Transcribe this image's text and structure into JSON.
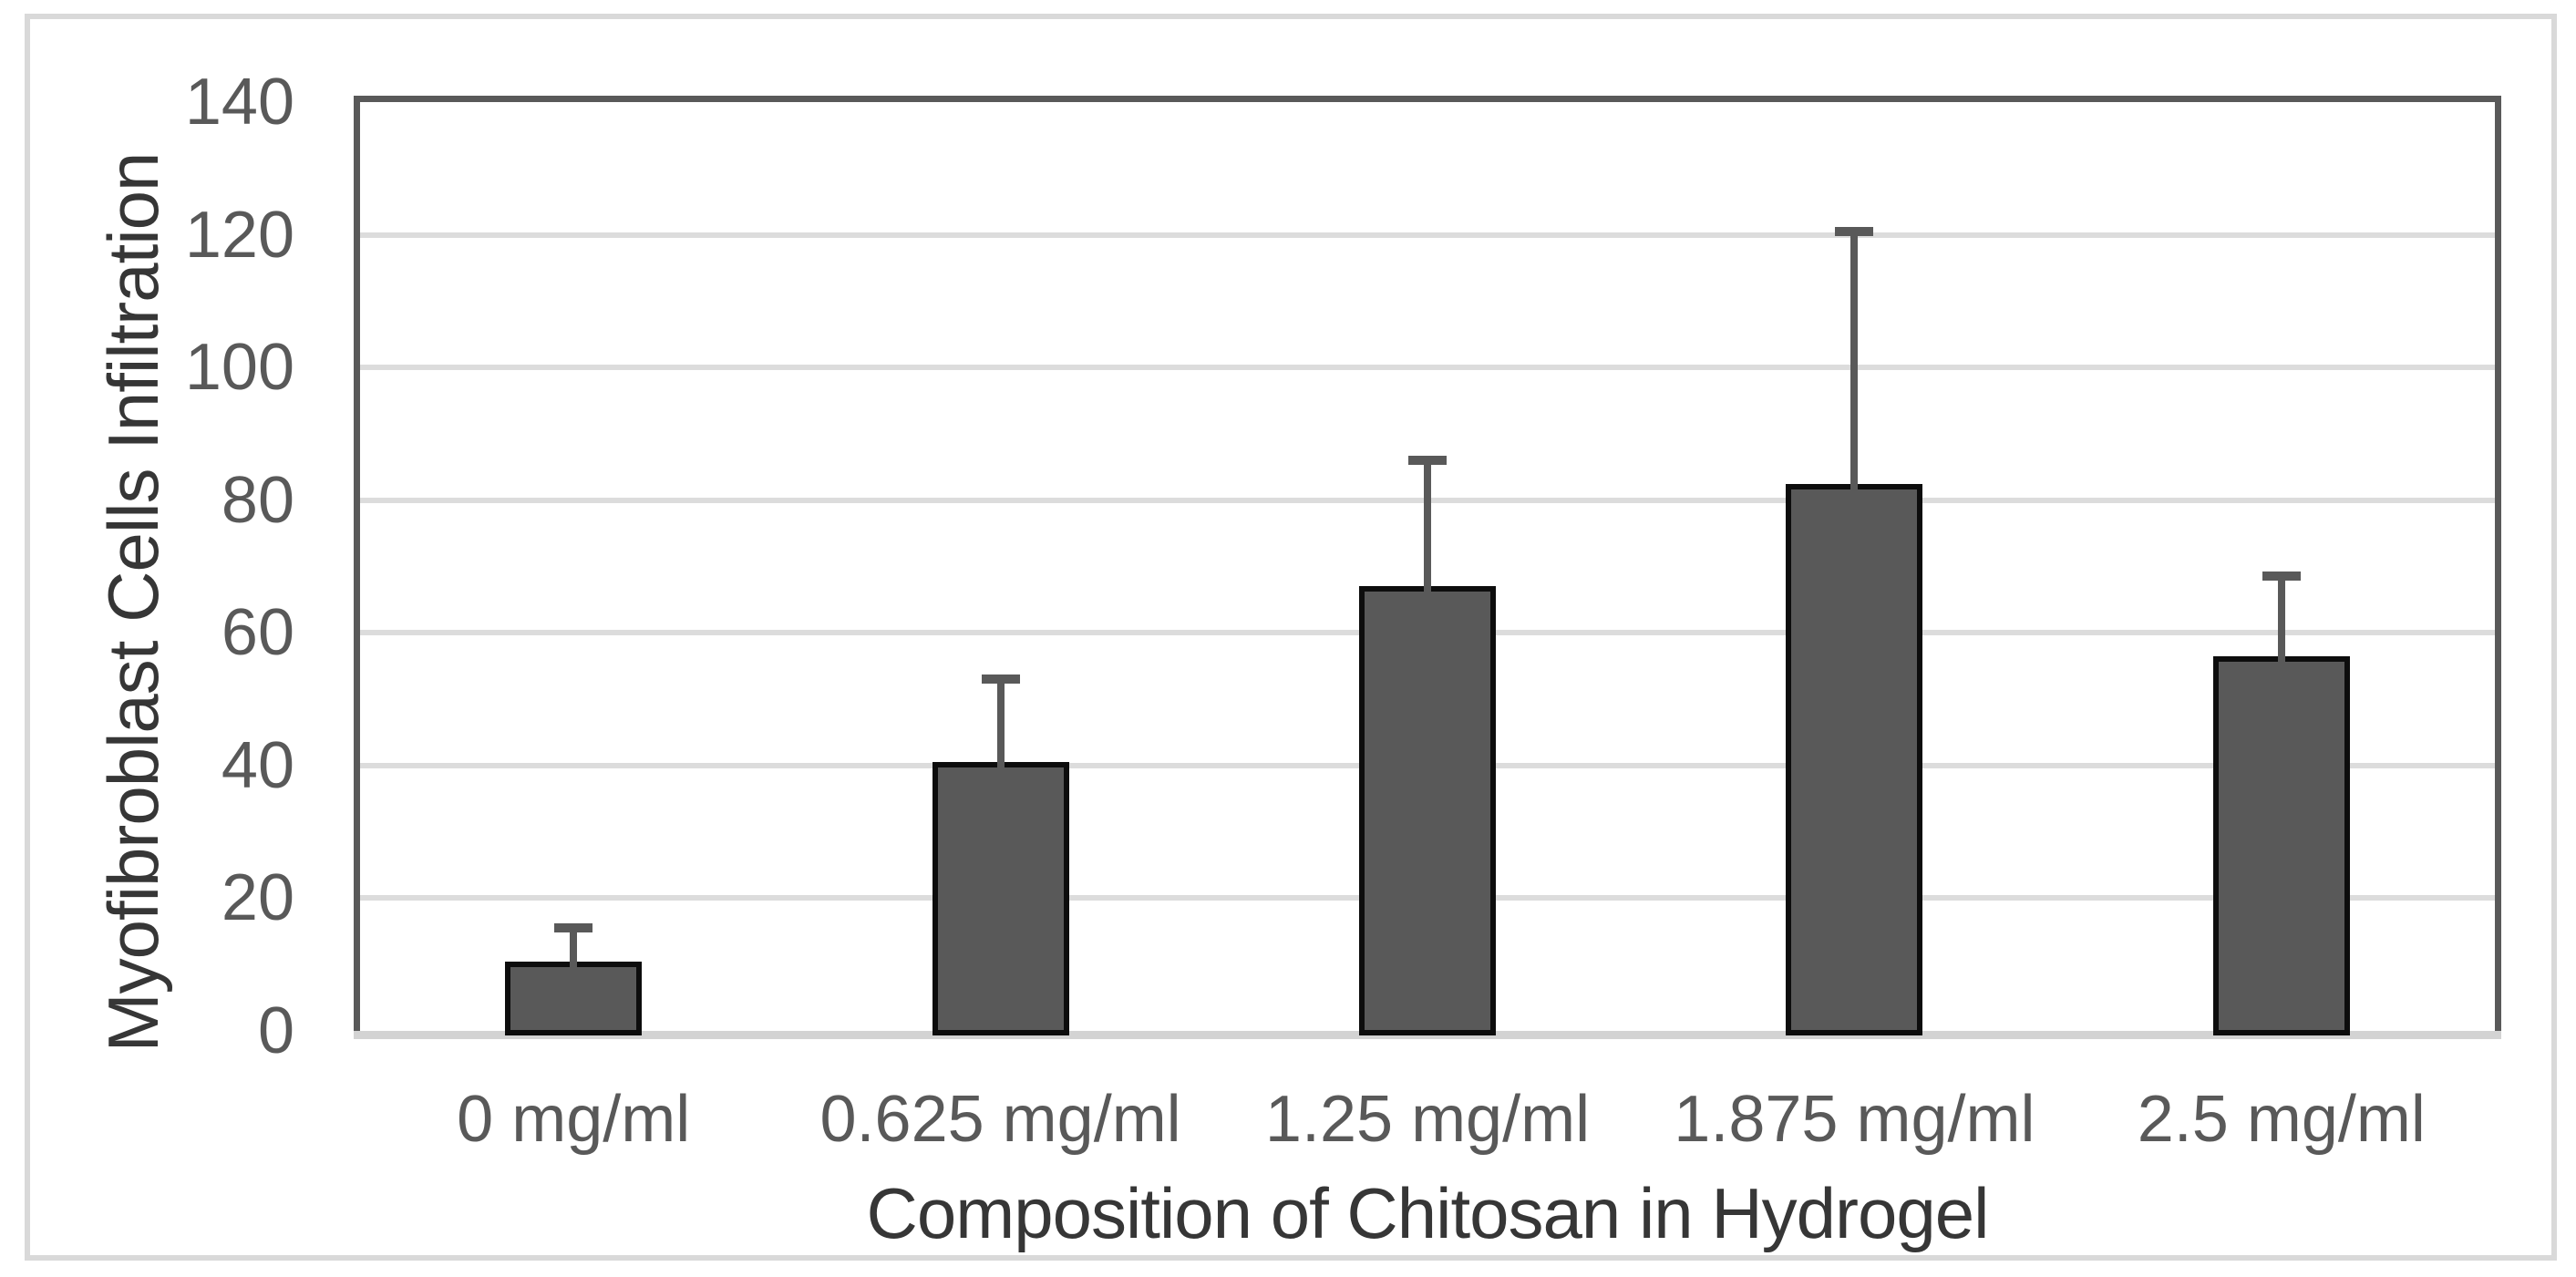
{
  "chart_data": {
    "type": "bar",
    "title": "",
    "categories": [
      "0 mg/ml",
      "0.625 mg/ml",
      "1.25 mg/ml",
      "1.875 mg/ml",
      "2.5 mg/ml"
    ],
    "series": [
      {
        "name": "Myofibroblast Cells Infiltration",
        "values": [
          10.5,
          40.5,
          67,
          82.5,
          56.5
        ],
        "errors_plus": [
          5,
          12.5,
          19,
          38,
          12
        ]
      }
    ],
    "xlabel": "Composition of Chitosan in Hydrogel",
    "ylabel": "Myofibroblast Cells Infiltration",
    "ylim": [
      0,
      140
    ],
    "ytick_step": 20,
    "yticks": [
      0,
      20,
      40,
      60,
      80,
      100,
      120,
      140
    ],
    "grid": "horizontal-major",
    "legend": "none",
    "colors": {
      "bar_fill": "#595959",
      "bar_border": "#0d0d0d",
      "error_bar": "#595959",
      "gridline": "#dcdcdc",
      "axis_dark": "#595959",
      "axis_bottom": "#d3d3d3",
      "tick_label": "#595959",
      "axis_title": "#363636",
      "outer_frame": "#d9d9d9",
      "background": "#ffffff"
    }
  }
}
